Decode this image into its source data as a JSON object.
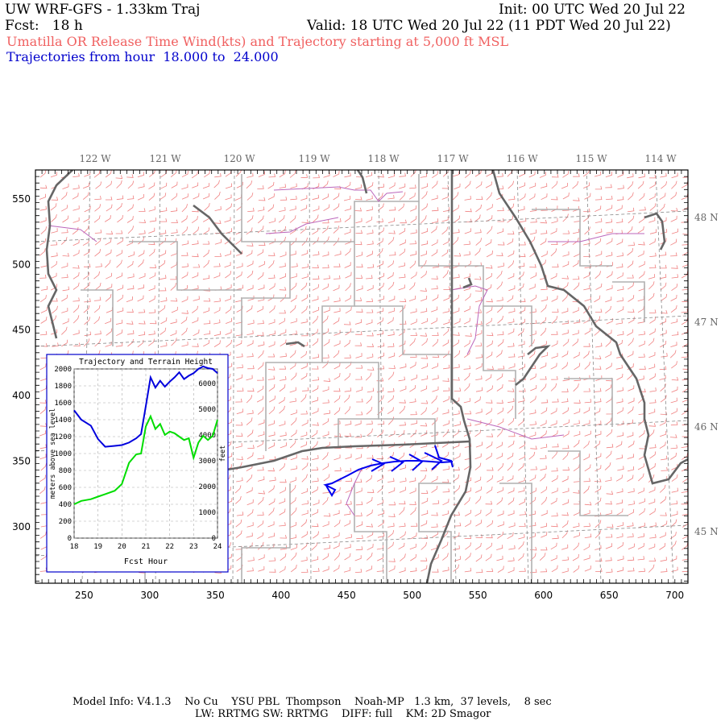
{
  "header": {
    "model_title": "UW WRF-GFS - 1.33km Traj",
    "init": "Init: 00 UTC Wed 20 Jul 22",
    "forecast": "Fcst:   18 h",
    "valid": "Valid: 18 UTC Wed 20 Jul 22 (11 PDT Wed 20 Jul 22)",
    "release_desc": "Umatilla OR Release Time Wind(kts) and Trajectory starting at 5,000 ft MSL",
    "traj_hours": "Trajectories from hour  18.000 to  24.000"
  },
  "map": {
    "lon_labels": [
      "122 W",
      "121 W",
      "120 W",
      "119 W",
      "118 W",
      "117 W",
      "116 W",
      "115 W",
      "114 W"
    ],
    "lat_labels": [
      "48 N",
      "47 N",
      "46 N",
      "45 N"
    ],
    "x_ticks": [
      "250",
      "300",
      "350",
      "400",
      "450",
      "500",
      "550",
      "600",
      "650",
      "700"
    ],
    "y_ticks": [
      "550",
      "500",
      "450",
      "400",
      "350",
      "300"
    ],
    "colors": {
      "barbs": "#f08080",
      "state_borders": "#666666",
      "county_lines": "#aaaaaa",
      "lakes_rivers": "#bb66bb",
      "trajectory": "#0000ee"
    },
    "trajectory_grid": {
      "x": [
        438,
        440,
        445,
        455,
        470,
        485,
        500,
        515,
        530
      ],
      "y": [
        325,
        332,
        337,
        343,
        347,
        349,
        350,
        351,
        351
      ]
    }
  },
  "inset": {
    "title": "Trajectory and Terrain Height",
    "ylabel_left": "meters above sea level",
    "ylabel_right": "feet",
    "xlabel": "Fcst Hour",
    "x_ticks": [
      "18",
      "19",
      "20",
      "21",
      "22",
      "23",
      "24"
    ],
    "y_left_ticks": [
      "0",
      "200",
      "400",
      "600",
      "800",
      "1000",
      "1200",
      "1400",
      "1600",
      "1800",
      "2000"
    ],
    "y_right_ticks": [
      "0",
      "1000",
      "2000",
      "3000",
      "4000",
      "5000",
      "6000"
    ],
    "chart_data": {
      "type": "line",
      "title": "Trajectory and Terrain Height",
      "xlabel": "Fcst Hour",
      "ylabel": "meters above sea level",
      "xlim": [
        18,
        24
      ],
      "ylim": [
        0,
        2000
      ],
      "x": [
        18,
        18.3,
        18.7,
        19,
        19.3,
        19.7,
        20,
        20.3,
        20.6,
        20.8,
        21,
        21.2,
        21.4,
        21.6,
        21.8,
        22,
        22.2,
        22.4,
        22.6,
        22.8,
        23,
        23.2,
        23.4,
        23.6,
        23.8,
        24
      ],
      "series": [
        {
          "color": "#0000dd",
          "values": [
            1510,
            1400,
            1330,
            1170,
            1080,
            1090,
            1100,
            1130,
            1180,
            1230,
            1560,
            1900,
            1780,
            1860,
            1790,
            1850,
            1900,
            1960,
            1880,
            1920,
            1950,
            2000,
            2030,
            2010,
            2000,
            1950
          ]
        },
        {
          "color": "#00dd00",
          "values": [
            400,
            440,
            460,
            490,
            520,
            560,
            640,
            890,
            990,
            1000,
            1320,
            1440,
            1290,
            1350,
            1220,
            1260,
            1240,
            1200,
            1160,
            1180,
            950,
            1130,
            1210,
            1160,
            1210,
            1400
          ]
        }
      ]
    }
  },
  "footer": {
    "line1": "Model Info: V4.1.3    No Cu    YSU PBL  Thompson    Noah-MP   1.3 km,  37 levels,    8 sec",
    "line2": "LW: RRTMG SW: RRTMG    DIFF: full    KM: 2D Smagor"
  }
}
